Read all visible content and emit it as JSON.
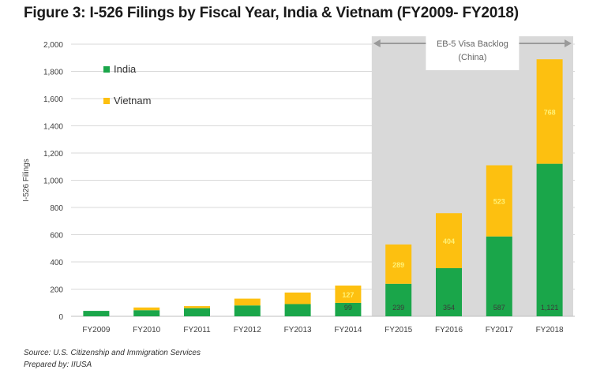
{
  "title": "Figure 3: I-526 Filings by Fiscal Year, India & Vietnam (FY2009- FY2018)",
  "source_lines": [
    "Source: U.S. Citizenship and Immigration Services",
    "Prepared by: IIUSA"
  ],
  "colors": {
    "india": "#1aa64a",
    "vietnam": "#fdc010",
    "backlog_shade": "#d9d9d9",
    "gridline": "#d9d9d9",
    "axis_text": "#404040",
    "india_label": "#3a3a3a",
    "vietnam_label": "#fff176",
    "arrow": "#9a9a9a"
  },
  "chart_data": {
    "type": "bar",
    "stacked": true,
    "categories": [
      "FY2009",
      "FY2010",
      "FY2011",
      "FY2012",
      "FY2013",
      "FY2014",
      "FY2015",
      "FY2016",
      "FY2017",
      "FY2018"
    ],
    "series": [
      {
        "name": "India",
        "values": [
          40,
          45,
          60,
          80,
          90,
          99,
          239,
          354,
          587,
          1121
        ],
        "data_labels": [
          "",
          "",
          "",
          "",
          "",
          "99",
          "239",
          "354",
          "587",
          "1,121"
        ]
      },
      {
        "name": "Vietnam",
        "values": [
          0,
          20,
          15,
          50,
          85,
          127,
          289,
          404,
          523,
          768
        ],
        "data_labels": [
          "",
          "",
          "",
          "",
          "",
          "127",
          "289",
          "404",
          "523",
          "768"
        ]
      }
    ],
    "ylabel": "I-526 Filings",
    "xlabel": "",
    "ylim": [
      0,
      2000
    ],
    "yticks": [
      0,
      200,
      400,
      600,
      800,
      1000,
      1200,
      1400,
      1600,
      1800,
      2000
    ],
    "ytick_labels": [
      "0",
      "200",
      "400",
      "600",
      "800",
      "1,000",
      "1,200",
      "1,400",
      "1,600",
      "1,800",
      "2,000"
    ],
    "grid": true,
    "legend_position": "top-left",
    "annotation": {
      "text_lines": [
        "EB-5 Visa Backlog",
        "(China)"
      ],
      "shaded_from_category": "FY2015",
      "shaded_to_category": "FY2018"
    }
  }
}
